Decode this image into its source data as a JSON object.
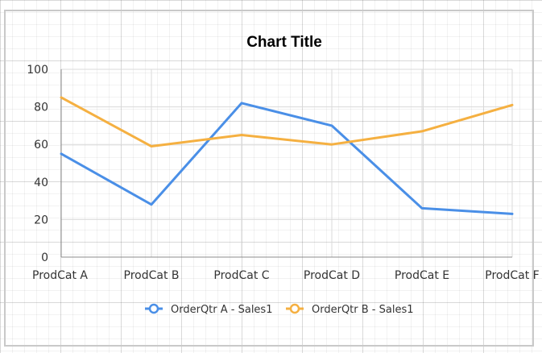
{
  "chart_data": {
    "type": "line",
    "title": "Chart Title",
    "categories": [
      "ProdCat A",
      "ProdCat B",
      "ProdCat C",
      "ProdCat D",
      "ProdCat E",
      "ProdCat F"
    ],
    "series": [
      {
        "name": "OrderQtr A - Sales1",
        "color": "#4a8fe7",
        "values": [
          55,
          28,
          82,
          70,
          26,
          23
        ]
      },
      {
        "name": "OrderQtr B - Sales1",
        "color": "#f5b041",
        "values": [
          85,
          59,
          65,
          60,
          67,
          81
        ]
      }
    ],
    "yticks": [
      0,
      20,
      40,
      60,
      80,
      100
    ],
    "ylim": [
      0,
      100
    ],
    "grid": true,
    "legend_position": "bottom"
  }
}
